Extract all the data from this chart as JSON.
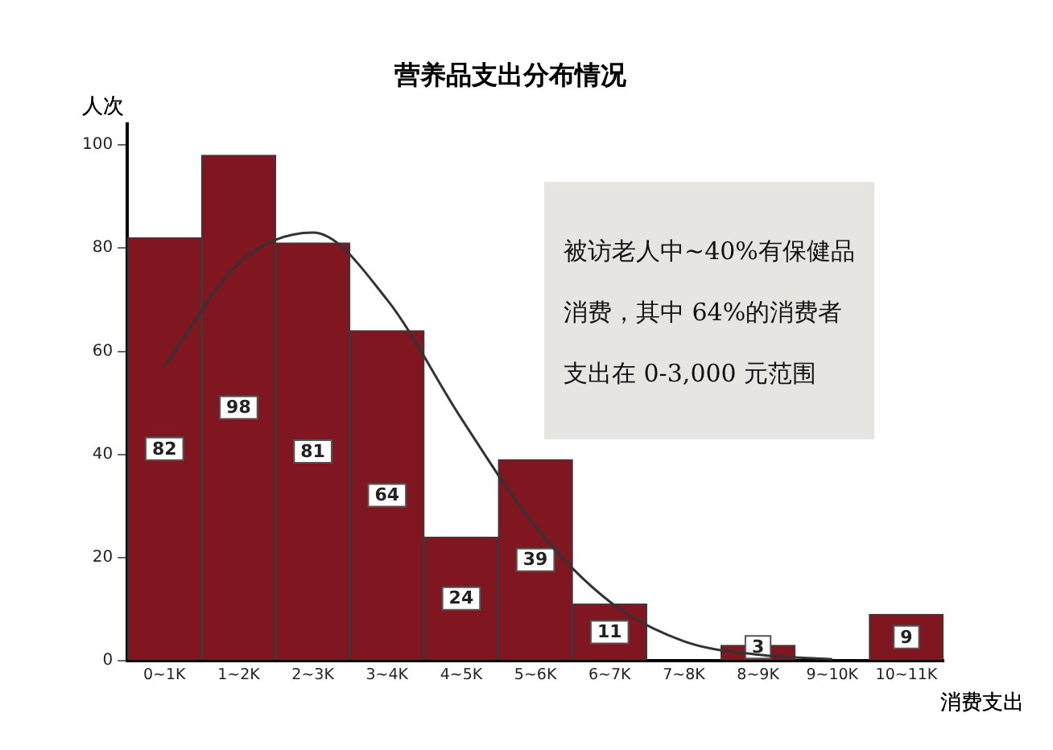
{
  "chart_data": {
    "type": "bar",
    "title": "营养品支出分布情况",
    "xlabel": "消费支出",
    "ylabel": "人次",
    "categories": [
      "0~1K",
      "1~2K",
      "2~3K",
      "3~4K",
      "4~5K",
      "5~6K",
      "6~7K",
      "7~8K",
      "8~9K",
      "9~10K",
      "10~11K"
    ],
    "series": [
      {
        "color": "#7f1620",
        "values": [
          82,
          98,
          81,
          64,
          24,
          39,
          11,
          0,
          3,
          0,
          9
        ],
        "value_labels": [
          "82",
          "98",
          "81",
          "64",
          "24",
          "39",
          "11",
          null,
          "3",
          null,
          "9"
        ]
      },
      {
        "type": "line",
        "color": "#333333",
        "values": [
          57,
          77,
          83,
          70,
          47,
          26,
          11.5,
          3.8,
          1.2,
          0.3,
          null
        ]
      }
    ],
    "ylim": [
      0,
      104
    ],
    "yticks": [
      0,
      20,
      40,
      60,
      80,
      100
    ],
    "grid": false,
    "legend": false,
    "annotations": [
      "被访老人中~40%有保健品消费，其中 64%的消费者支出在 0-3,000 元范围"
    ]
  }
}
